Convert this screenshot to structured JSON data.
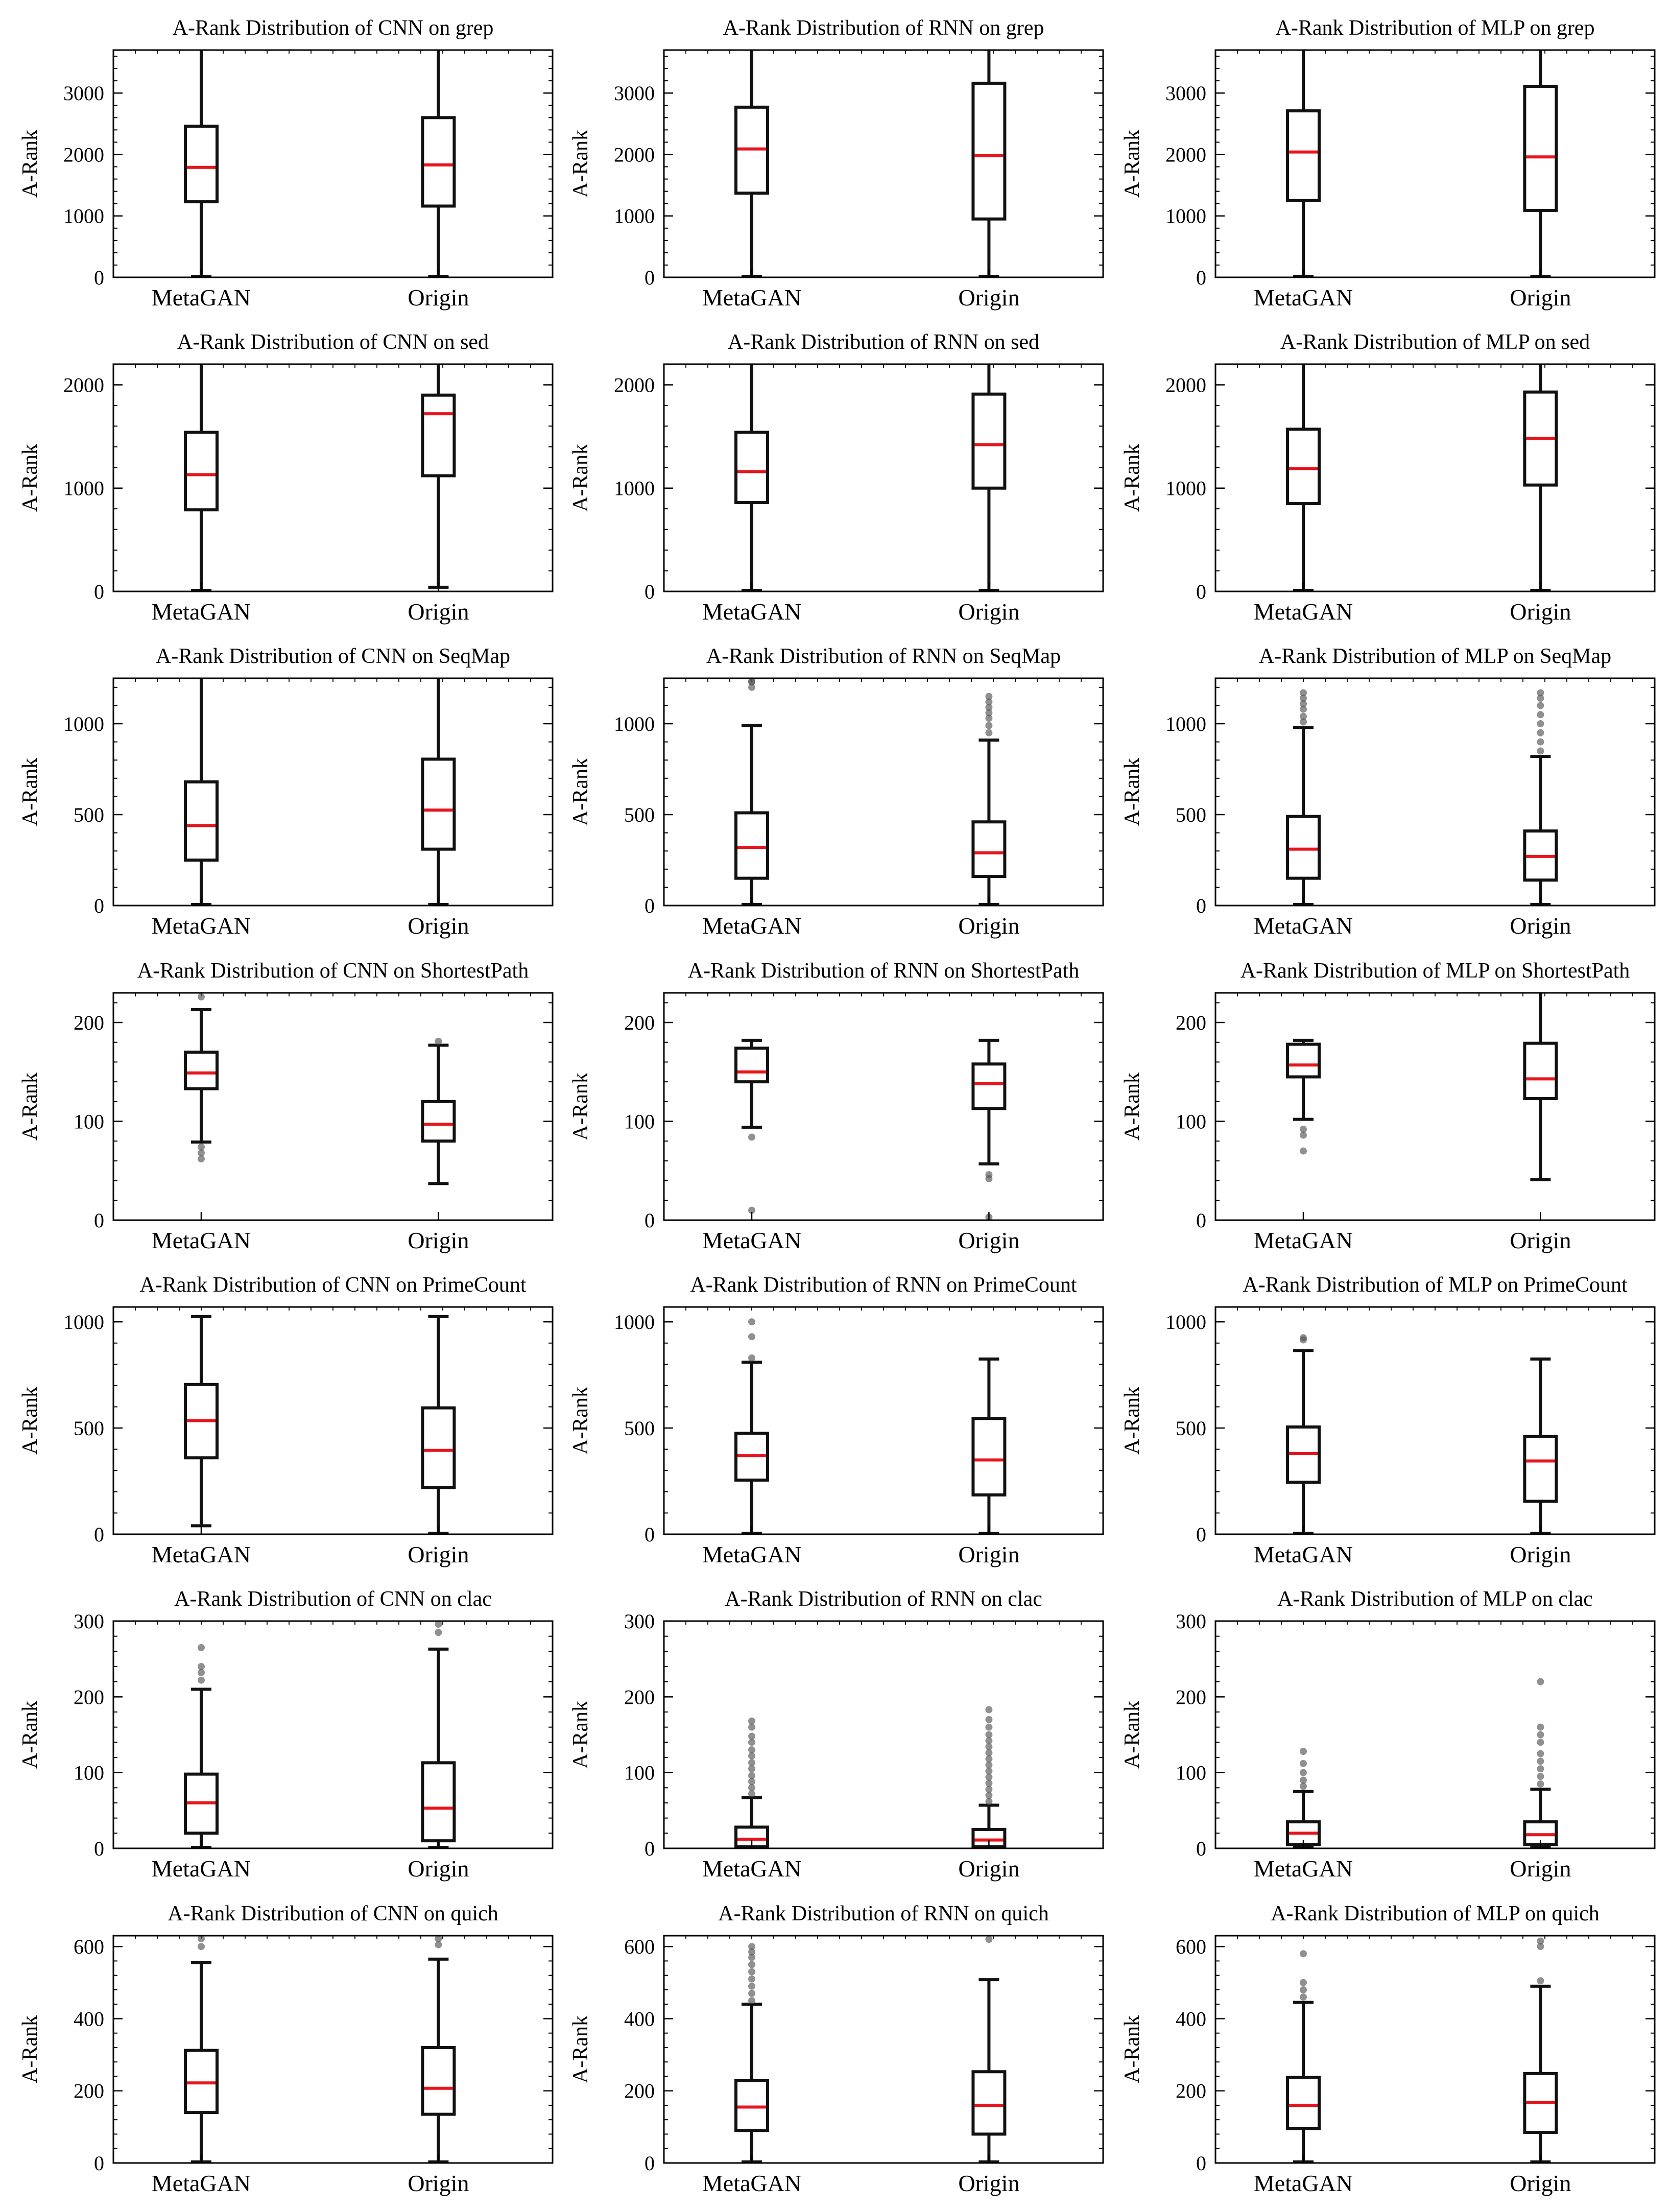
{
  "figure": {
    "rows": 7,
    "cols": 3,
    "colors": {
      "median": "#e8141c",
      "box": "#111111",
      "outlier": "#555555",
      "axis": "#000000"
    }
  },
  "chart_data": [
    {
      "type": "box",
      "title": "A-Rank Distribution of CNN on grep",
      "ylabel": "A-Rank",
      "xlabel": "",
      "categories": [
        "MetaGAN",
        "Origin"
      ],
      "ylim": [
        0,
        3700
      ],
      "yticks": [
        0,
        1000,
        2000,
        3000
      ],
      "boxes": [
        {
          "q1": 1230,
          "median": 1790,
          "q3": 2460,
          "whislo": 0,
          "whishi": 3700,
          "fliers": []
        },
        {
          "q1": 1160,
          "median": 1830,
          "q3": 2600,
          "whislo": 0,
          "whishi": 3700,
          "fliers": []
        }
      ]
    },
    {
      "type": "box",
      "title": "A-Rank Distribution of RNN on grep",
      "ylabel": "A-Rank",
      "xlabel": "",
      "categories": [
        "MetaGAN",
        "Origin"
      ],
      "ylim": [
        0,
        3700
      ],
      "yticks": [
        0,
        1000,
        2000,
        3000
      ],
      "boxes": [
        {
          "q1": 1370,
          "median": 2090,
          "q3": 2770,
          "whislo": 0,
          "whishi": 3700,
          "fliers": []
        },
        {
          "q1": 950,
          "median": 1980,
          "q3": 3160,
          "whislo": 0,
          "whishi": 3700,
          "fliers": []
        }
      ]
    },
    {
      "type": "box",
      "title": "A-Rank Distribution of MLP on grep",
      "ylabel": "A-Rank",
      "xlabel": "",
      "categories": [
        "MetaGAN",
        "Origin"
      ],
      "ylim": [
        0,
        3700
      ],
      "yticks": [
        0,
        1000,
        2000,
        3000
      ],
      "boxes": [
        {
          "q1": 1250,
          "median": 2040,
          "q3": 2710,
          "whislo": 0,
          "whishi": 3700,
          "fliers": []
        },
        {
          "q1": 1090,
          "median": 1960,
          "q3": 3110,
          "whislo": 0,
          "whishi": 3700,
          "fliers": []
        }
      ]
    },
    {
      "type": "box",
      "title": "A-Rank Distribution of CNN on sed",
      "ylabel": "A-Rank",
      "xlabel": "",
      "categories": [
        "MetaGAN",
        "Origin"
      ],
      "ylim": [
        0,
        2200
      ],
      "yticks": [
        0,
        1000,
        2000
      ],
      "boxes": [
        {
          "q1": 790,
          "median": 1130,
          "q3": 1540,
          "whislo": 10,
          "whishi": 2200,
          "fliers": []
        },
        {
          "q1": 1120,
          "median": 1720,
          "q3": 1900,
          "whislo": 40,
          "whishi": 2200,
          "fliers": []
        }
      ]
    },
    {
      "type": "box",
      "title": "A-Rank Distribution of RNN on sed",
      "ylabel": "A-Rank",
      "xlabel": "",
      "categories": [
        "MetaGAN",
        "Origin"
      ],
      "ylim": [
        0,
        2200
      ],
      "yticks": [
        0,
        1000,
        2000
      ],
      "boxes": [
        {
          "q1": 860,
          "median": 1160,
          "q3": 1540,
          "whislo": 0,
          "whishi": 2200,
          "fliers": []
        },
        {
          "q1": 1000,
          "median": 1420,
          "q3": 1910,
          "whislo": 0,
          "whishi": 2200,
          "fliers": []
        }
      ]
    },
    {
      "type": "box",
      "title": "A-Rank Distribution of MLP on sed",
      "ylabel": "A-Rank",
      "xlabel": "",
      "categories": [
        "MetaGAN",
        "Origin"
      ],
      "ylim": [
        0,
        2200
      ],
      "yticks": [
        0,
        1000,
        2000
      ],
      "boxes": [
        {
          "q1": 850,
          "median": 1190,
          "q3": 1570,
          "whislo": 0,
          "whishi": 2200,
          "fliers": []
        },
        {
          "q1": 1030,
          "median": 1480,
          "q3": 1930,
          "whislo": 0,
          "whishi": 2200,
          "fliers": []
        }
      ]
    },
    {
      "type": "box",
      "title": "A-Rank Distribution of CNN on SeqMap",
      "ylabel": "A-Rank",
      "xlabel": "",
      "categories": [
        "MetaGAN",
        "Origin"
      ],
      "ylim": [
        0,
        1250
      ],
      "yticks": [
        0,
        500,
        1000
      ],
      "boxes": [
        {
          "q1": 250,
          "median": 440,
          "q3": 680,
          "whislo": 0,
          "whishi": 1250,
          "fliers": []
        },
        {
          "q1": 310,
          "median": 525,
          "q3": 805,
          "whislo": 0,
          "whishi": 1250,
          "fliers": []
        }
      ]
    },
    {
      "type": "box",
      "title": "A-Rank Distribution of RNN on SeqMap",
      "ylabel": "A-Rank",
      "xlabel": "",
      "categories": [
        "MetaGAN",
        "Origin"
      ],
      "ylim": [
        0,
        1250
      ],
      "yticks": [
        0,
        500,
        1000
      ],
      "boxes": [
        {
          "q1": 150,
          "median": 320,
          "q3": 510,
          "whislo": 0,
          "whishi": 990,
          "fliers": [
            1200,
            1230,
            1250
          ]
        },
        {
          "q1": 160,
          "median": 290,
          "q3": 460,
          "whislo": 0,
          "whishi": 910,
          "fliers": [
            950,
            990,
            1030,
            1060,
            1090,
            1120,
            1150
          ]
        }
      ]
    },
    {
      "type": "box",
      "title": "A-Rank Distribution of MLP on SeqMap",
      "ylabel": "A-Rank",
      "xlabel": "",
      "categories": [
        "MetaGAN",
        "Origin"
      ],
      "ylim": [
        0,
        1250
      ],
      "yticks": [
        0,
        500,
        1000
      ],
      "boxes": [
        {
          "q1": 150,
          "median": 310,
          "q3": 490,
          "whislo": 0,
          "whishi": 980,
          "fliers": [
            1010,
            1040,
            1080,
            1110,
            1140,
            1170
          ]
        },
        {
          "q1": 140,
          "median": 270,
          "q3": 410,
          "whislo": 0,
          "whishi": 820,
          "fliers": [
            850,
            900,
            950,
            1000,
            1050,
            1100,
            1140,
            1170
          ]
        }
      ]
    },
    {
      "type": "box",
      "title": "A-Rank Distribution of CNN on ShortestPath",
      "ylabel": "A-Rank",
      "xlabel": "",
      "categories": [
        "MetaGAN",
        "Origin"
      ],
      "ylim": [
        0,
        230
      ],
      "yticks": [
        0,
        100,
        200
      ],
      "boxes": [
        {
          "q1": 133,
          "median": 149,
          "q3": 170,
          "whislo": 79,
          "whishi": 213,
          "fliers": [
            62,
            68,
            74,
            226
          ]
        },
        {
          "q1": 80,
          "median": 97,
          "q3": 120,
          "whislo": 37,
          "whishi": 177,
          "fliers": [
            181
          ]
        }
      ]
    },
    {
      "type": "box",
      "title": "A-Rank Distribution of RNN on ShortestPath",
      "ylabel": "A-Rank",
      "xlabel": "",
      "categories": [
        "MetaGAN",
        "Origin"
      ],
      "ylim": [
        0,
        230
      ],
      "yticks": [
        0,
        100,
        200
      ],
      "boxes": [
        {
          "q1": 140,
          "median": 150,
          "q3": 174,
          "whislo": 94,
          "whishi": 182,
          "fliers": [
            10,
            84
          ]
        },
        {
          "q1": 113,
          "median": 138,
          "q3": 158,
          "whislo": 57,
          "whishi": 182,
          "fliers": [
            3,
            42,
            46
          ]
        }
      ]
    },
    {
      "type": "box",
      "title": "A-Rank Distribution of MLP on ShortestPath",
      "ylabel": "A-Rank",
      "xlabel": "",
      "categories": [
        "MetaGAN",
        "Origin"
      ],
      "ylim": [
        0,
        230
      ],
      "yticks": [
        0,
        100,
        200
      ],
      "boxes": [
        {
          "q1": 145,
          "median": 157,
          "q3": 178,
          "whislo": 102,
          "whishi": 182,
          "fliers": [
            70,
            86,
            92
          ]
        },
        {
          "q1": 123,
          "median": 143,
          "q3": 179,
          "whislo": 41,
          "whishi": 230,
          "fliers": []
        }
      ]
    },
    {
      "type": "box",
      "title": "A-Rank Distribution of CNN on PrimeCount",
      "ylabel": "A-Rank",
      "xlabel": "",
      "categories": [
        "MetaGAN",
        "Origin"
      ],
      "ylim": [
        0,
        1070
      ],
      "yticks": [
        0,
        500,
        1000
      ],
      "boxes": [
        {
          "q1": 360,
          "median": 535,
          "q3": 705,
          "whislo": 40,
          "whishi": 1025,
          "fliers": []
        },
        {
          "q1": 220,
          "median": 395,
          "q3": 595,
          "whislo": 0,
          "whishi": 1025,
          "fliers": []
        }
      ]
    },
    {
      "type": "box",
      "title": "A-Rank Distribution of RNN on PrimeCount",
      "ylabel": "A-Rank",
      "xlabel": "",
      "categories": [
        "MetaGAN",
        "Origin"
      ],
      "ylim": [
        0,
        1070
      ],
      "yticks": [
        0,
        500,
        1000
      ],
      "boxes": [
        {
          "q1": 255,
          "median": 370,
          "q3": 475,
          "whislo": 0,
          "whishi": 810,
          "fliers": [
            830,
            930,
            1000
          ]
        },
        {
          "q1": 185,
          "median": 350,
          "q3": 545,
          "whislo": 0,
          "whishi": 825,
          "fliers": []
        }
      ]
    },
    {
      "type": "box",
      "title": "A-Rank Distribution of MLP on PrimeCount",
      "ylabel": "A-Rank",
      "xlabel": "",
      "categories": [
        "MetaGAN",
        "Origin"
      ],
      "ylim": [
        0,
        1070
      ],
      "yticks": [
        0,
        500,
        1000
      ],
      "boxes": [
        {
          "q1": 245,
          "median": 380,
          "q3": 505,
          "whislo": 0,
          "whishi": 865,
          "fliers": [
            915,
            925
          ]
        },
        {
          "q1": 155,
          "median": 345,
          "q3": 460,
          "whislo": 0,
          "whishi": 825,
          "fliers": []
        }
      ]
    },
    {
      "type": "box",
      "title": "A-Rank Distribution of CNN on clac",
      "ylabel": "A-Rank",
      "xlabel": "",
      "categories": [
        "MetaGAN",
        "Origin"
      ],
      "ylim": [
        0,
        300
      ],
      "yticks": [
        0,
        100,
        200,
        300
      ],
      "boxes": [
        {
          "q1": 20,
          "median": 60,
          "q3": 98,
          "whislo": 0,
          "whishi": 210,
          "fliers": [
            222,
            232,
            240,
            265
          ]
        },
        {
          "q1": 10,
          "median": 53,
          "q3": 113,
          "whislo": 0,
          "whishi": 263,
          "fliers": [
            285,
            297
          ]
        }
      ]
    },
    {
      "type": "box",
      "title": "A-Rank Distribution of RNN on clac",
      "ylabel": "A-Rank",
      "xlabel": "",
      "categories": [
        "MetaGAN",
        "Origin"
      ],
      "ylim": [
        0,
        300
      ],
      "yticks": [
        0,
        100,
        200,
        300
      ],
      "boxes": [
        {
          "q1": 2,
          "median": 12,
          "q3": 28,
          "whislo": 0,
          "whishi": 67,
          "fliers": [
            72,
            80,
            88,
            96,
            105,
            113,
            122,
            130,
            140,
            148,
            160,
            168
          ]
        },
        {
          "q1": 2,
          "median": 11,
          "q3": 25,
          "whislo": 0,
          "whishi": 57,
          "fliers": [
            62,
            70,
            78,
            86,
            94,
            102,
            110,
            118,
            126,
            134,
            142,
            150,
            160,
            170,
            183
          ]
        }
      ]
    },
    {
      "type": "box",
      "title": "A-Rank Distribution of MLP on clac",
      "ylabel": "A-Rank",
      "xlabel": "",
      "categories": [
        "MetaGAN",
        "Origin"
      ],
      "ylim": [
        0,
        300
      ],
      "yticks": [
        0,
        100,
        200,
        300
      ],
      "boxes": [
        {
          "q1": 5,
          "median": 20,
          "q3": 35,
          "whislo": 0,
          "whishi": 75,
          "fliers": [
            82,
            90,
            100,
            112,
            128
          ]
        },
        {
          "q1": 5,
          "median": 18,
          "q3": 35,
          "whislo": 0,
          "whishi": 78,
          "fliers": [
            85,
            95,
            105,
            115,
            125,
            140,
            150,
            160,
            220
          ]
        }
      ]
    },
    {
      "type": "box",
      "title": "A-Rank Distribution of CNN on quich",
      "ylabel": "A-Rank",
      "xlabel": "",
      "categories": [
        "MetaGAN",
        "Origin"
      ],
      "ylim": [
        0,
        630
      ],
      "yticks": [
        0,
        200,
        400,
        600
      ],
      "boxes": [
        {
          "q1": 140,
          "median": 222,
          "q3": 312,
          "whislo": 0,
          "whishi": 555,
          "fliers": [
            600,
            625
          ]
        },
        {
          "q1": 135,
          "median": 207,
          "q3": 320,
          "whislo": 0,
          "whishi": 565,
          "fliers": [
            605,
            622
          ]
        }
      ]
    },
    {
      "type": "box",
      "title": "A-Rank Distribution of RNN on quich",
      "ylabel": "A-Rank",
      "xlabel": "",
      "categories": [
        "MetaGAN",
        "Origin"
      ],
      "ylim": [
        0,
        630
      ],
      "yticks": [
        0,
        200,
        400,
        600
      ],
      "boxes": [
        {
          "q1": 90,
          "median": 155,
          "q3": 228,
          "whislo": 0,
          "whishi": 440,
          "fliers": [
            450,
            470,
            490,
            510,
            530,
            550,
            570,
            585,
            600
          ]
        },
        {
          "q1": 80,
          "median": 160,
          "q3": 253,
          "whislo": 0,
          "whishi": 508,
          "fliers": [
            620
          ]
        }
      ]
    },
    {
      "type": "box",
      "title": "A-Rank Distribution of MLP on quich",
      "ylabel": "A-Rank",
      "xlabel": "",
      "categories": [
        "MetaGAN",
        "Origin"
      ],
      "ylim": [
        0,
        630
      ],
      "yticks": [
        0,
        200,
        400,
        600
      ],
      "boxes": [
        {
          "q1": 95,
          "median": 160,
          "q3": 237,
          "whislo": 0,
          "whishi": 445,
          "fliers": [
            460,
            480,
            500,
            580
          ]
        },
        {
          "q1": 85,
          "median": 167,
          "q3": 248,
          "whislo": 0,
          "whishi": 490,
          "fliers": [
            505,
            600,
            615
          ]
        }
      ]
    }
  ]
}
